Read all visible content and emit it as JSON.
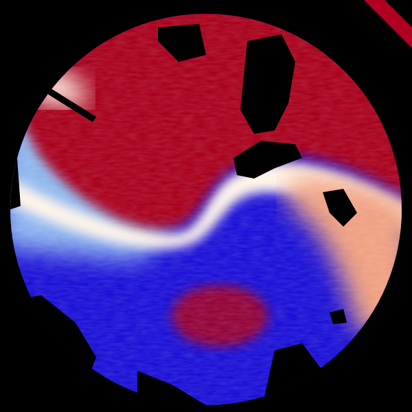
{
  "image": {
    "colors": {
      "background": "#000000",
      "inbound_strong": "#1a0fd6",
      "inbound_light": "#8fb8f0",
      "zero_line": "#fff4e8",
      "outbound_light": "#f0a080",
      "outbound_strong": "#a8001e"
    }
  }
}
